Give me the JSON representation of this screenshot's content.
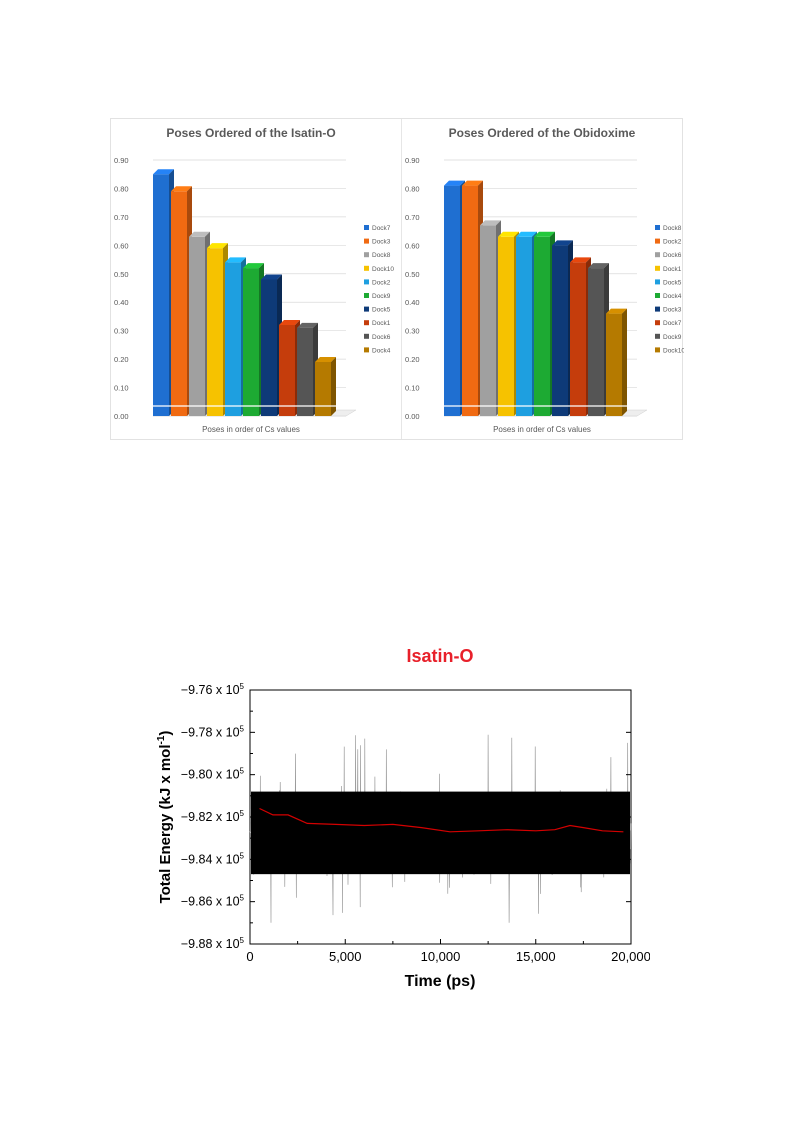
{
  "chart_data": [
    {
      "type": "bar",
      "title": "Poses Ordered of the Isatin-O",
      "xlabel": "Poses in order of Cs values",
      "ylabel": "",
      "ylim": [
        0,
        0.9
      ],
      "yticks": [
        "0.00",
        "0.10",
        "0.20",
        "0.30",
        "0.40",
        "0.50",
        "0.60",
        "0.70",
        "0.80",
        "0.90"
      ],
      "grid": true,
      "legend": "right",
      "categories": [
        "Dock7",
        "Dock3",
        "Dock8",
        "Dock10",
        "Dock2",
        "Dock9",
        "Dock5",
        "Dock1",
        "Dock6",
        "Dock4"
      ],
      "values": [
        0.85,
        0.79,
        0.63,
        0.59,
        0.54,
        0.52,
        0.48,
        0.32,
        0.31,
        0.19
      ],
      "colors": [
        "#1f6fd1",
        "#f06a12",
        "#a0a0a0",
        "#f6c200",
        "#1e9fe0",
        "#1daa33",
        "#0e3a78",
        "#c53d0c",
        "#555555",
        "#b57a00"
      ]
    },
    {
      "type": "bar",
      "title": "Poses Ordered of the Obidoxime",
      "xlabel": "Poses in order of Cs values",
      "ylabel": "",
      "ylim": [
        0,
        0.9
      ],
      "yticks": [
        "0.00",
        "0.10",
        "0.20",
        "0.30",
        "0.40",
        "0.50",
        "0.60",
        "0.70",
        "0.80",
        "0.90"
      ],
      "grid": true,
      "legend": "right",
      "categories": [
        "Dock8",
        "Dock2",
        "Dock6",
        "Dock1",
        "Dock5",
        "Dock4",
        "Dock3",
        "Dock7",
        "Dock9",
        "Dock10"
      ],
      "values": [
        0.81,
        0.81,
        0.67,
        0.63,
        0.63,
        0.63,
        0.6,
        0.54,
        0.52,
        0.36
      ],
      "colors": [
        "#1f6fd1",
        "#f06a12",
        "#a0a0a0",
        "#f6c200",
        "#1e9fe0",
        "#1daa33",
        "#0e3a78",
        "#c53d0c",
        "#555555",
        "#b57a00"
      ]
    },
    {
      "type": "line",
      "title": "Isatin-O",
      "title_color": "#e8202a",
      "xlabel": "Time (ps)",
      "ylabel": "Total Energy (kJ x mol-1)",
      "xlim": [
        0,
        20000
      ],
      "ylim": [
        -988000,
        -976000
      ],
      "xticks": [
        "0",
        "5,000",
        "10,000",
        "15,000",
        "20,000"
      ],
      "yticks": [
        "-9.88 x 10^5",
        "-9.86 x 10^5",
        "-9.84 x 10^5",
        "-9.82 x 10^5",
        "-9.80 x 10^5",
        "-9.78 x 10^5",
        "-9.76 x 10^5"
      ],
      "series": [
        {
          "color": "#000000",
          "x": [
            0,
            20000
          ],
          "y_mean": -982800,
          "band": [
            -984700,
            -980800
          ],
          "spikes_to": [
            -987000,
            -977000
          ]
        },
        {
          "color": "#d40000",
          "x": [
            500,
            1200,
            2000,
            3000,
            4500,
            6000,
            7500,
            9000,
            10500,
            12000,
            13500,
            15000,
            16000,
            16800,
            17500,
            18500,
            19600
          ],
          "y": [
            -981600,
            -981900,
            -981900,
            -982300,
            -982350,
            -982400,
            -982350,
            -982500,
            -982700,
            -982650,
            -982600,
            -982650,
            -982600,
            -982400,
            -982500,
            -982650,
            -982700
          ]
        }
      ]
    }
  ]
}
